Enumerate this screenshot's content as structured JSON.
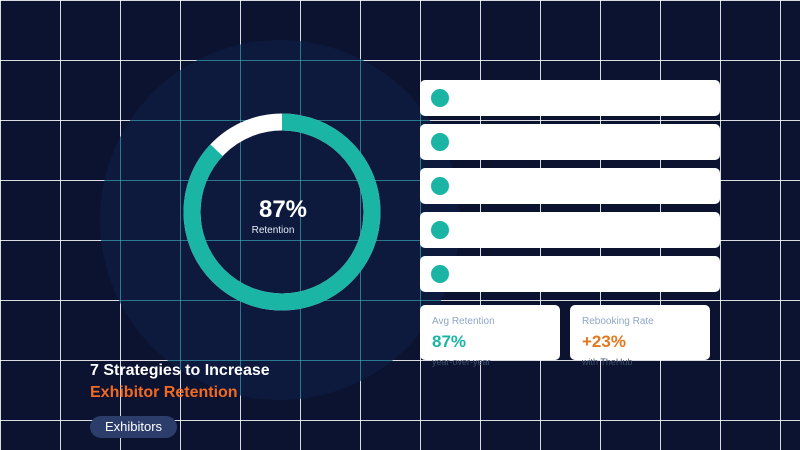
{
  "colors": {
    "background": "#0b1330",
    "accent_teal": "#1ab5a5",
    "accent_orange": "#f26a21",
    "tag_background": "#2c3d6c"
  },
  "donut": {
    "percent": 87,
    "value_text": "87%",
    "label": "Retention"
  },
  "list_items": [
    {
      "icon": "teal-dot-icon"
    },
    {
      "icon": "teal-dot-icon"
    },
    {
      "icon": "teal-dot-icon"
    },
    {
      "icon": "teal-dot-icon"
    },
    {
      "icon": "teal-dot-icon"
    }
  ],
  "stats": {
    "avg": {
      "label": "Avg Retention",
      "value": "87%",
      "note": "year-over-year",
      "color": "#1ab5a5"
    },
    "rebook": {
      "label": "Rebooking Rate",
      "value": "+23%",
      "note": "with TheHub",
      "color": "#e2771f"
    }
  },
  "title": {
    "line1": "7 Strategies to Increase",
    "line2": "Exhibitor Retention"
  },
  "tag": "Exhibitors"
}
